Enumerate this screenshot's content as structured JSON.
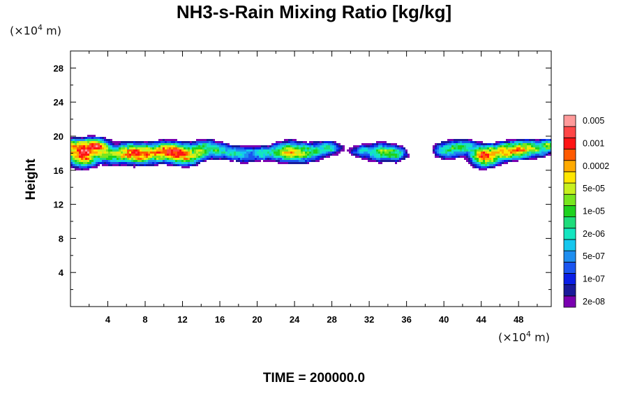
{
  "chart_data": {
    "type": "heatmap",
    "title": "NH3-s-Rain Mixing Ratio [kg/kg]",
    "ylabel": "Height",
    "x_unit": {
      "prefix": "(×10",
      "exp": "4",
      "suffix": " m)"
    },
    "y_unit": {
      "prefix": "(×10",
      "exp": "4",
      "suffix": " m)"
    },
    "xlim": [
      0,
      51.5
    ],
    "ylim": [
      0,
      30
    ],
    "x_ticks": [
      4,
      8,
      12,
      16,
      20,
      24,
      28,
      32,
      36,
      40,
      44,
      48
    ],
    "y_ticks": [
      4,
      8,
      12,
      16,
      20,
      24,
      28
    ],
    "footer": "TIME = 200000.0",
    "colorbar": {
      "colors": [
        "#7a00b0",
        "#1a1a9a",
        "#0a1ee6",
        "#1a55f0",
        "#1e8ef0",
        "#16c7ee",
        "#14e5c0",
        "#1edc7a",
        "#1ed21e",
        "#78e61e",
        "#c8f01e",
        "#ffe600",
        "#ffaa00",
        "#ff5a00",
        "#ff1414",
        "#ff4646",
        "#ff9a9a"
      ],
      "labels": [
        "2e-08",
        "1e-07",
        "5e-07",
        "2e-06",
        "1e-05",
        "5e-05",
        "0.0002",
        "0.001",
        "0.005"
      ],
      "label_levels": [
        1,
        3,
        5,
        7,
        9,
        11,
        13,
        15,
        17
      ]
    },
    "field": {
      "description_note": "",
      "blobs": [
        [
          0.2,
          18.9,
          1.0,
          0.75,
          0.55
        ],
        [
          1.3,
          17.8,
          1.6,
          1.25,
          0.95
        ],
        [
          2.7,
          18.9,
          1.3,
          0.8,
          0.8
        ],
        [
          4.3,
          17.7,
          1.4,
          0.95,
          0.45
        ],
        [
          6.2,
          18.0,
          1.4,
          1.05,
          0.55
        ],
        [
          8.0,
          17.9,
          1.8,
          1.05,
          0.78
        ],
        [
          10.5,
          18.3,
          1.6,
          0.95,
          0.72
        ],
        [
          12.3,
          17.7,
          1.7,
          1.0,
          0.72
        ],
        [
          14.5,
          18.6,
          1.6,
          0.95,
          0.45
        ],
        [
          16.8,
          18.1,
          1.6,
          0.85,
          0.35
        ],
        [
          19.0,
          17.8,
          1.5,
          0.95,
          0.3
        ],
        [
          21.0,
          18.0,
          1.3,
          0.8,
          0.35
        ],
        [
          23.2,
          18.2,
          1.4,
          1.1,
          0.62
        ],
        [
          25.3,
          18.0,
          1.6,
          1.0,
          0.5
        ],
        [
          27.6,
          18.6,
          1.5,
          0.8,
          0.4
        ],
        [
          31.0,
          18.2,
          1.1,
          0.7,
          0.3
        ],
        [
          33.2,
          18.1,
          1.5,
          1.0,
          0.52
        ],
        [
          35.0,
          17.9,
          1.1,
          0.85,
          0.4
        ],
        [
          40.2,
          18.3,
          1.3,
          0.9,
          0.42
        ],
        [
          42.2,
          18.7,
          1.6,
          0.9,
          0.4
        ],
        [
          44.3,
          17.5,
          1.3,
          1.05,
          0.85
        ],
        [
          46.0,
          18.1,
          1.4,
          0.95,
          0.55
        ],
        [
          47.8,
          18.4,
          1.4,
          0.95,
          0.68
        ],
        [
          49.8,
          18.5,
          1.4,
          0.95,
          0.48
        ],
        [
          51.3,
          18.9,
          0.8,
          0.75,
          0.4
        ]
      ]
    }
  }
}
